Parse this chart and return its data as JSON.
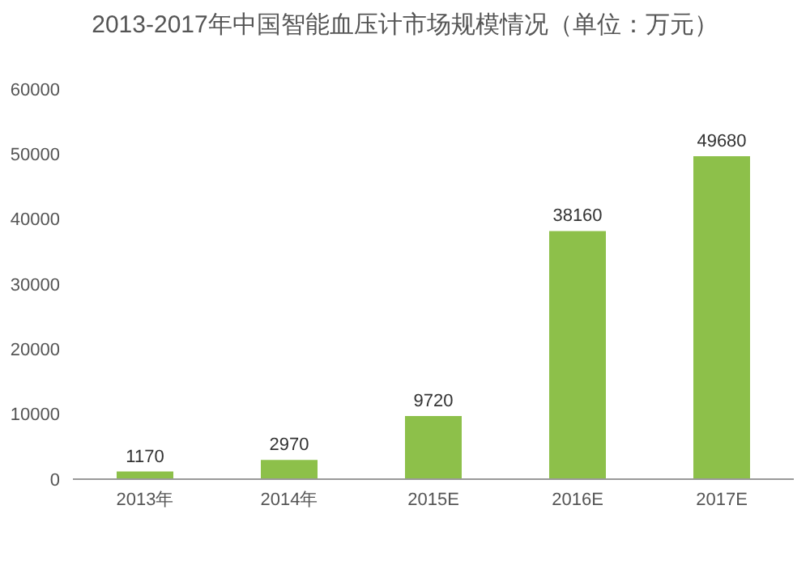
{
  "chart_data": {
    "type": "bar",
    "title": "2013-2017年中国智能血压计市场规模情况（单位：万元）",
    "categories": [
      "2013年",
      "2014年",
      "2015E",
      "2016E",
      "2017E"
    ],
    "values": [
      1170,
      2970,
      9720,
      38160,
      49680
    ],
    "color": "#8dc04a",
    "ylim": [
      0,
      60000
    ],
    "yticks": [
      0,
      10000,
      20000,
      30000,
      40000,
      50000,
      60000
    ],
    "data_labels": true,
    "grid": false,
    "legend": false
  }
}
